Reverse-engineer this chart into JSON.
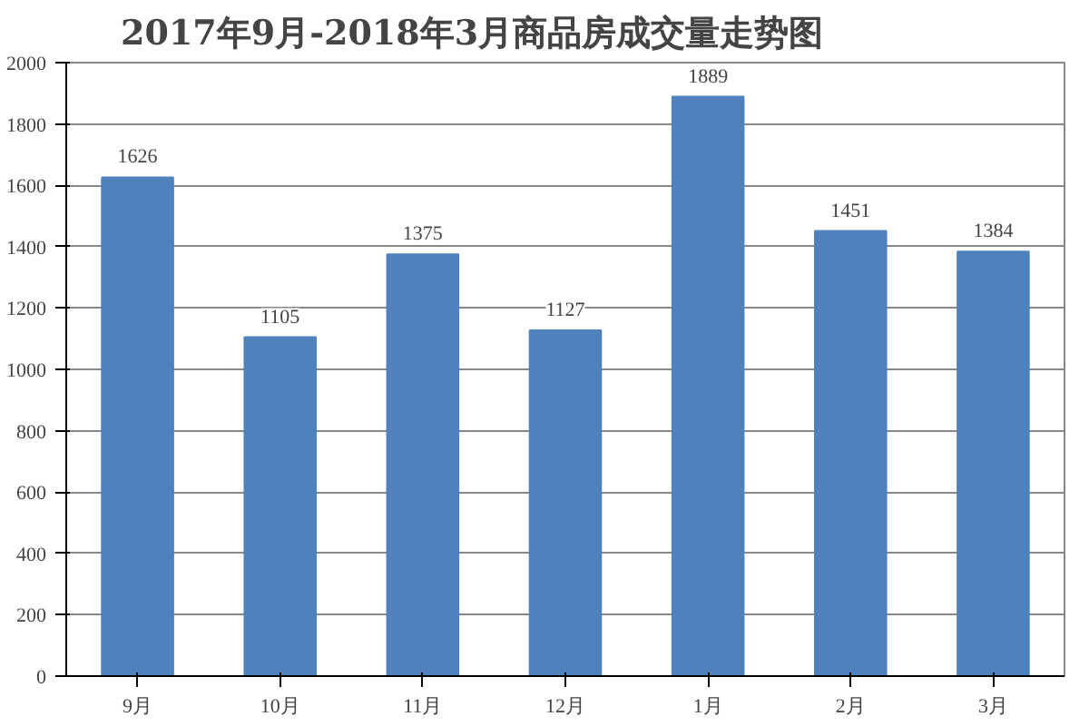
{
  "chart_data": {
    "type": "bar",
    "title": "2017年9月-2018年3月商品房成交量走势图",
    "categories": [
      "9月",
      "10月",
      "11月",
      "12月",
      "1月",
      "2月",
      "3月"
    ],
    "values": [
      1626,
      1105,
      1375,
      1127,
      1889,
      1451,
      1384
    ],
    "color": "#4f81bd",
    "ylim": [
      0,
      2000
    ],
    "yticks": [
      0,
      200,
      400,
      600,
      800,
      1000,
      1200,
      1400,
      1600,
      1800,
      2000
    ],
    "grid": "y",
    "data_labels": true
  }
}
